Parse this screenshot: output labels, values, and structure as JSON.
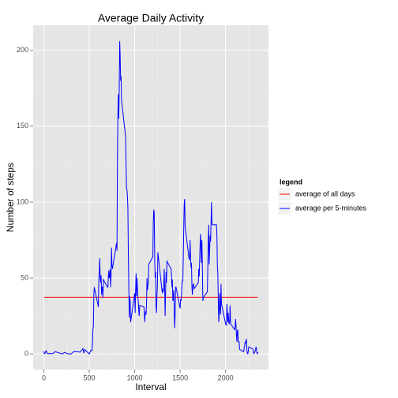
{
  "chart_data": {
    "type": "line",
    "title": "Average Daily Activity",
    "x_label": "Interval",
    "y_label": "Number of steps",
    "xlim": [
      -117.75,
      2472.75
    ],
    "ylim": [
      -10.3,
      216.5
    ],
    "xticks": [
      0,
      500,
      1000,
      1500,
      2000
    ],
    "yticks": [
      0,
      50,
      100,
      150,
      200
    ],
    "xminor": [
      250,
      750,
      1250,
      1750,
      2250
    ],
    "yminor": [
      25,
      75,
      125,
      175
    ],
    "grid": true,
    "legend_title": "legend",
    "legend_position": "right",
    "series": [
      {
        "name": "average of all days",
        "color": "#ff0000",
        "x": [
          0,
          2355
        ],
        "values": [
          37.38,
          37.38
        ]
      },
      {
        "name": "average per 5-minutes",
        "color": "#0000ff",
        "x": [
          0,
          5,
          10,
          25,
          40,
          100,
          125,
          200,
          230,
          255,
          300,
          330,
          400,
          430,
          440,
          450,
          500,
          515,
          530,
          535,
          540,
          545,
          550,
          555,
          600,
          605,
          610,
          615,
          620,
          625,
          630,
          635,
          640,
          645,
          650,
          655,
          700,
          705,
          710,
          715,
          720,
          725,
          730,
          735,
          740,
          745,
          750,
          755,
          800,
          805,
          810,
          815,
          820,
          825,
          830,
          835,
          840,
          845,
          850,
          855,
          900,
          905,
          910,
          915,
          920,
          925,
          930,
          935,
          940,
          945,
          950,
          955,
          1000,
          1005,
          1010,
          1015,
          1020,
          1025,
          1030,
          1035,
          1040,
          1045,
          1050,
          1055,
          1100,
          1105,
          1110,
          1115,
          1120,
          1125,
          1130,
          1135,
          1140,
          1145,
          1150,
          1155,
          1200,
          1205,
          1210,
          1215,
          1220,
          1225,
          1230,
          1235,
          1240,
          1245,
          1250,
          1255,
          1300,
          1305,
          1310,
          1315,
          1320,
          1325,
          1330,
          1335,
          1340,
          1345,
          1350,
          1355,
          1400,
          1405,
          1410,
          1415,
          1420,
          1425,
          1430,
          1435,
          1440,
          1445,
          1450,
          1455,
          1500,
          1505,
          1510,
          1515,
          1520,
          1525,
          1530,
          1535,
          1540,
          1545,
          1550,
          1555,
          1600,
          1605,
          1610,
          1615,
          1620,
          1625,
          1630,
          1635,
          1640,
          1645,
          1650,
          1655,
          1700,
          1705,
          1710,
          1715,
          1720,
          1725,
          1730,
          1735,
          1740,
          1745,
          1750,
          1755,
          1800,
          1805,
          1810,
          1815,
          1820,
          1825,
          1830,
          1835,
          1840,
          1845,
          1850,
          1855,
          1900,
          1905,
          1910,
          1915,
          1920,
          1925,
          1930,
          1935,
          1940,
          1945,
          1950,
          1955,
          2000,
          2005,
          2010,
          2015,
          2020,
          2025,
          2030,
          2035,
          2040,
          2045,
          2050,
          2055,
          2100,
          2105,
          2110,
          2115,
          2120,
          2125,
          2130,
          2135,
          2140,
          2145,
          2150,
          2155,
          2200,
          2205,
          2210,
          2215,
          2220,
          2225,
          2230,
          2235,
          2240,
          2245,
          2250,
          2255,
          2300,
          2305,
          2310,
          2315,
          2320,
          2325,
          2330,
          2335,
          2340,
          2345,
          2350,
          2355
        ],
        "values": [
          1.7,
          0.3,
          0.1,
          2.1,
          0.2,
          0.3,
          1.5,
          0,
          1.1,
          0.2,
          0,
          1.6,
          1.2,
          3.5,
          0.5,
          2.9,
          0,
          2.2,
          2.1,
          6,
          16,
          18,
          39,
          44,
          31,
          49,
          54,
          63,
          50,
          47,
          52,
          39,
          44,
          44,
          37,
          49,
          44,
          44,
          51,
          55,
          50,
          51,
          56,
          44,
          52,
          70,
          58,
          56,
          73,
          68,
          129,
          158,
          171,
          155,
          177,
          206,
          196,
          180,
          183,
          167,
          143,
          124,
          109,
          108,
          104,
          96,
          66,
          45,
          24,
          38,
          35,
          21,
          40,
          27,
          42,
          53,
          38,
          50,
          44,
          37,
          34,
          28,
          25,
          32,
          31,
          29,
          21,
          26,
          28,
          26,
          33,
          50,
          42,
          45,
          46,
          59,
          64,
          88,
          95,
          93,
          63,
          50,
          54,
          32,
          27,
          38,
          45,
          67,
          42,
          40,
          43,
          41,
          46,
          56,
          43,
          25,
          40,
          54,
          47,
          61,
          56,
          52,
          44,
          49,
          35,
          37,
          42,
          28,
          17,
          26,
          44,
          44,
          30,
          36,
          35,
          39,
          46,
          48,
          48,
          65,
          83,
          99,
          102,
          84,
          62,
          64,
          75,
          63,
          57,
          60,
          44,
          39,
          45,
          46,
          46,
          43,
          47,
          56,
          51,
          61,
          73,
          79,
          69,
          60,
          75,
          57,
          35,
          37,
          41,
          58,
          75,
          85,
          59,
          68,
          78,
          74,
          85,
          100,
          87,
          85,
          85,
          78,
          58,
          53,
          36,
          21,
          27,
          40,
          30,
          26,
          46,
          33,
          20,
          19,
          19,
          33,
          27,
          21,
          27,
          21,
          20,
          21,
          32,
          20,
          16,
          17,
          23,
          19,
          12,
          8,
          15,
          16,
          8,
          8,
          8,
          3,
          1.5,
          4,
          4.8,
          8,
          7,
          8.7,
          9.8,
          2.2,
          0.3,
          0.1,
          1.6,
          4.6,
          3.3,
          2.8,
          0,
          0.8,
          1,
          1.6,
          2.6,
          4.7,
          3.3,
          0.6,
          0.2,
          1.1
        ]
      }
    ]
  }
}
